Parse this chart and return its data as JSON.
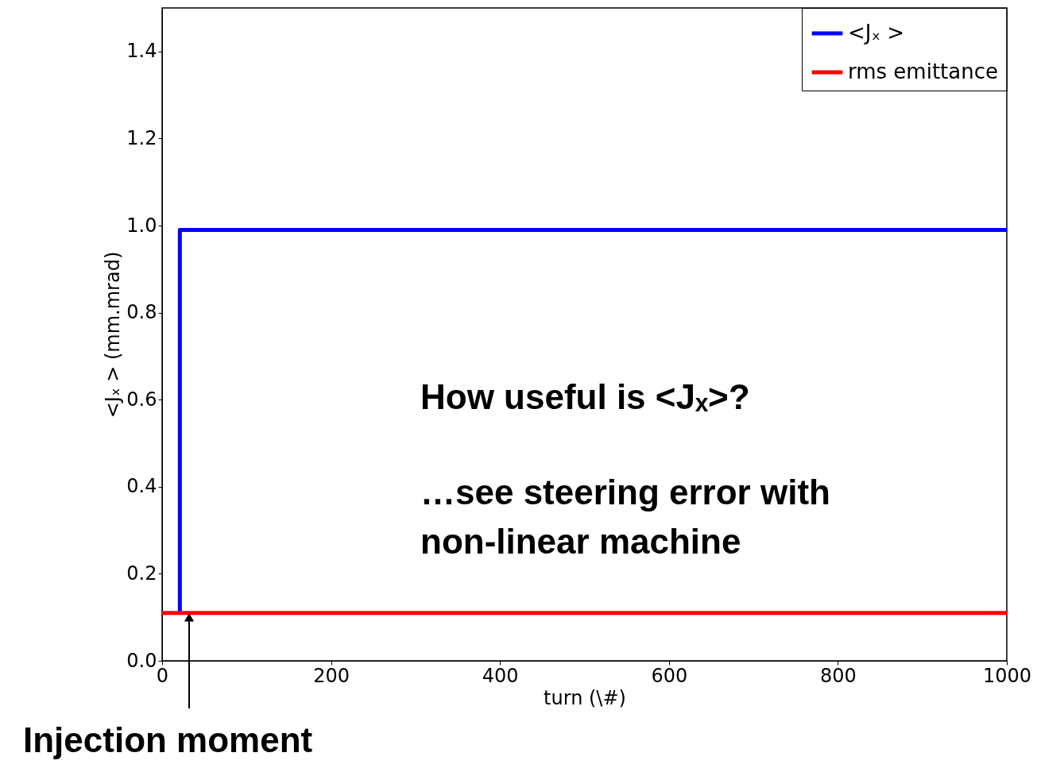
{
  "chart_data": {
    "type": "line",
    "xlabel": "turn (\\#)",
    "ylabel": "<Jₓ > (mm.mrad)",
    "series": [
      {
        "name": "<Jₓ >",
        "color": "#0000ff",
        "x": [
          21,
          21,
          1000
        ],
        "values": [
          0.11,
          0.99,
          0.99
        ]
      },
      {
        "name": "rms emittance",
        "color": "#ff0000",
        "x": [
          0,
          1000
        ],
        "values": [
          0.11,
          0.11
        ]
      }
    ],
    "xlim": [
      0,
      1000
    ],
    "xticks": [
      0,
      200,
      400,
      600,
      800,
      1000
    ],
    "ylim": [
      0,
      1.5
    ],
    "yticks": [
      {
        "value": 0,
        "label": "0.0"
      },
      {
        "value": 0.2,
        "label": "0.2"
      },
      {
        "value": 0.4,
        "label": "0.4"
      },
      {
        "value": 0.6,
        "label": "0.6"
      },
      {
        "value": 0.8,
        "label": "0.8"
      },
      {
        "value": 1.0,
        "label": "1.0"
      },
      {
        "value": 1.2,
        "label": "1.2"
      },
      {
        "value": 1.4,
        "label": "1.4"
      }
    ],
    "annotations": [
      "How useful is <Jₓ>?",
      "…see steering error with\nnon-linear machine",
      {
        "text": "Injection moment",
        "x": 32,
        "y": 0.1
      }
    ],
    "legend": "top right",
    "grid": false,
    "marker": "none",
    "line_style": "solid"
  }
}
